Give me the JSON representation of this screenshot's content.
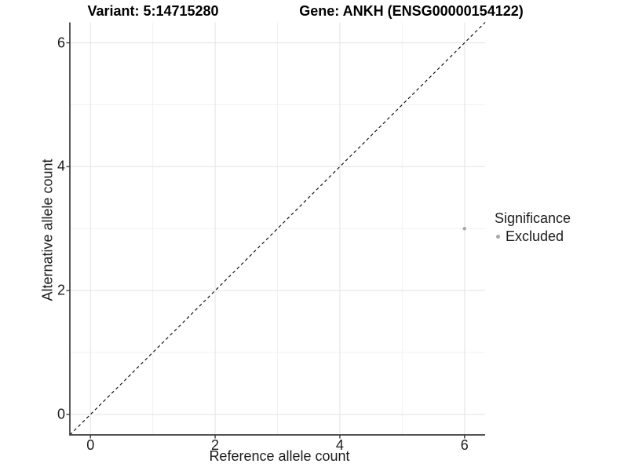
{
  "titles": {
    "variant": "Variant: 5:14715280",
    "gene": "Gene: ANKH (ENSG00000154122)"
  },
  "legend": {
    "title": "Significance",
    "items": [
      {
        "label": "Excluded",
        "color": "#a9a9a9"
      }
    ]
  },
  "colors": {
    "background": "#ffffff",
    "grid_major": "#e6e6e6",
    "grid_minor": "#f1f1f1",
    "axis_line": "#3c3c3c",
    "reference_line": "#000000",
    "point_excluded": "#a9a9a9"
  },
  "chart_data": {
    "type": "scatter",
    "title": "",
    "xlabel": "Reference allele count",
    "ylabel": "Alternative allele count",
    "xlim": [
      -0.33,
      6.33
    ],
    "ylim": [
      -0.33,
      6.33
    ],
    "x_ticks": [
      0,
      2,
      4,
      6
    ],
    "y_ticks": [
      0,
      2,
      4,
      6
    ],
    "x_minor_ticks": [
      1,
      3,
      5
    ],
    "y_minor_ticks": [
      1,
      3,
      5
    ],
    "grid": true,
    "legend_position": "right",
    "series": [
      {
        "name": "Excluded",
        "color": "#a9a9a9",
        "points": [
          {
            "x": 6,
            "y": 3
          }
        ]
      }
    ],
    "reference_line": {
      "type": "identity",
      "style": "dashed",
      "slope": 1,
      "intercept": 0
    }
  }
}
